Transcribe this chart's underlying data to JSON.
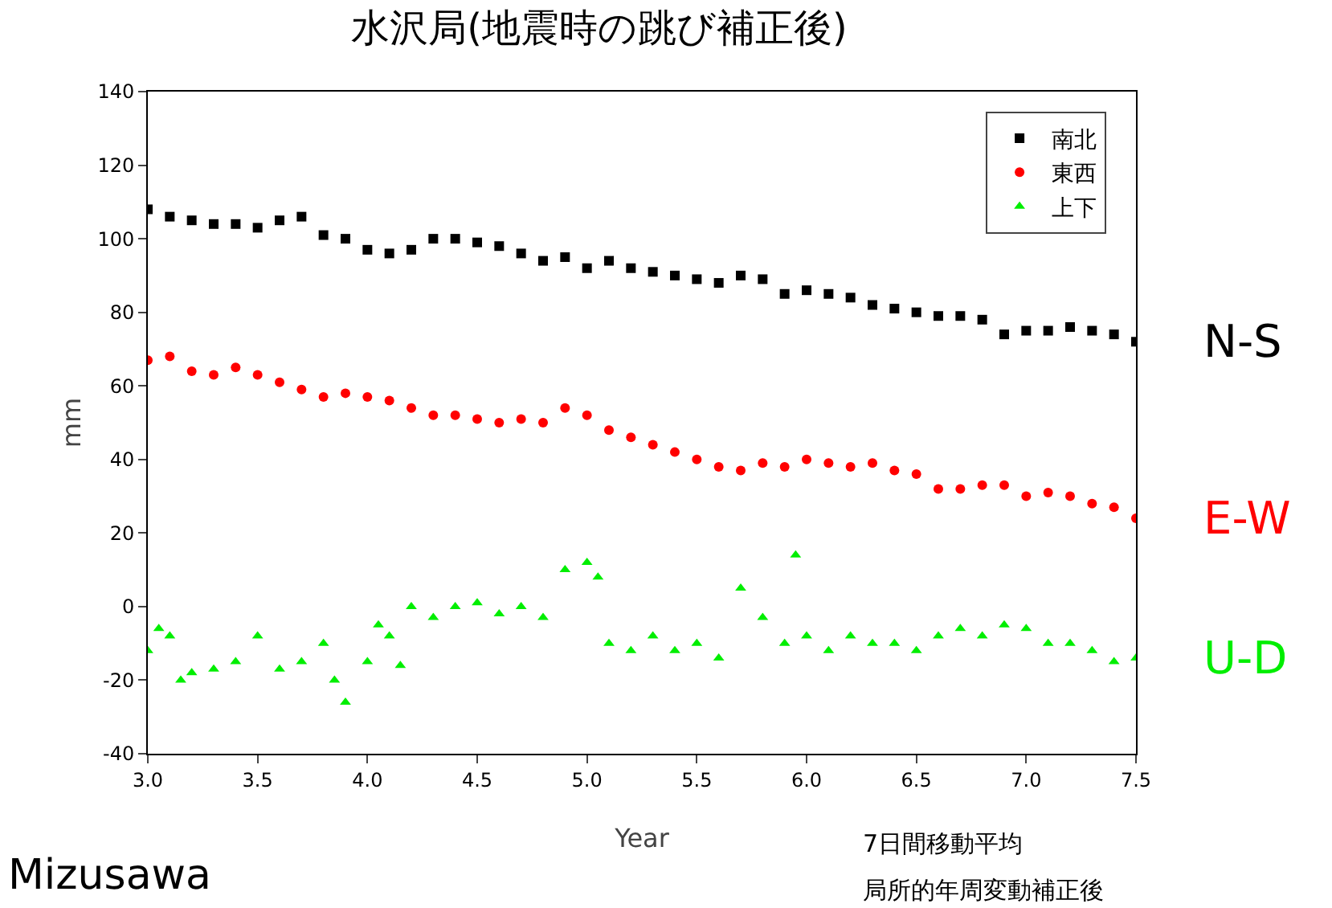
{
  "chart_data": {
    "type": "scatter",
    "title": "水沢局(地震時の跳び補正後)",
    "xlabel": "Year",
    "ylabel": "mm",
    "x": [
      3.0,
      3.1,
      3.2,
      3.3,
      3.4,
      3.5,
      3.6,
      3.7,
      3.8,
      3.9,
      4.0,
      4.1,
      4.2,
      4.3,
      4.4,
      4.5,
      4.6,
      4.7,
      4.8,
      4.9,
      5.0,
      5.1,
      5.2,
      5.3,
      5.4,
      5.5,
      5.6,
      5.7,
      5.8,
      5.9,
      6.0,
      6.1,
      6.2,
      6.3,
      6.4,
      6.5,
      6.6,
      6.7,
      6.8,
      6.9,
      7.0,
      7.1,
      7.2,
      7.3,
      7.4,
      7.5
    ],
    "series": [
      {
        "name": "南北",
        "color": "#000000",
        "marker": "square",
        "values": [
          108,
          106,
          105,
          104,
          104,
          103,
          105,
          106,
          101,
          100,
          97,
          96,
          97,
          100,
          100,
          99,
          98,
          96,
          94,
          95,
          92,
          94,
          92,
          91,
          90,
          89,
          88,
          90,
          89,
          85,
          86,
          85,
          84,
          82,
          81,
          80,
          79,
          79,
          78,
          74,
          75,
          75,
          76,
          75,
          74,
          72
        ]
      },
      {
        "name": "東西",
        "color": "#ff0000",
        "marker": "circle",
        "values": [
          67,
          68,
          64,
          63,
          65,
          63,
          61,
          59,
          57,
          58,
          57,
          56,
          54,
          52,
          52,
          51,
          50,
          51,
          50,
          54,
          52,
          48,
          46,
          44,
          42,
          40,
          38,
          37,
          39,
          38,
          40,
          39,
          38,
          39,
          37,
          36,
          32,
          32,
          33,
          33,
          30,
          31,
          30,
          28,
          27,
          24
        ]
      },
      {
        "name": "上下",
        "color": "#00ee00",
        "marker": "triangle",
        "x": [
          3.0,
          3.05,
          3.1,
          3.15,
          3.2,
          3.3,
          3.4,
          3.5,
          3.6,
          3.7,
          3.8,
          3.85,
          3.9,
          4.0,
          4.05,
          4.1,
          4.15,
          4.2,
          4.3,
          4.4,
          4.5,
          4.6,
          4.7,
          4.8,
          4.9,
          5.0,
          5.05,
          5.1,
          5.2,
          5.3,
          5.4,
          5.5,
          5.6,
          5.7,
          5.8,
          5.9,
          5.95,
          6.0,
          6.1,
          6.2,
          6.3,
          6.4,
          6.5,
          6.6,
          6.7,
          6.8,
          6.9,
          7.0,
          7.1,
          7.2,
          7.3,
          7.4,
          7.5
        ],
        "values": [
          -12,
          -6,
          -8,
          -20,
          -18,
          -17,
          -15,
          -8,
          -17,
          -15,
          -10,
          -20,
          -26,
          -15,
          -5,
          -8,
          -16,
          0,
          -3,
          0,
          1,
          -2,
          0,
          -3,
          10,
          12,
          8,
          -10,
          -12,
          -8,
          -12,
          -10,
          -14,
          5,
          -3,
          -10,
          14,
          -8,
          -12,
          -8,
          -10,
          -10,
          -12,
          -8,
          -6,
          -8,
          -5,
          -6,
          -10,
          -10,
          -12,
          -15,
          -14
        ]
      }
    ],
    "xlim": [
      3.0,
      7.5
    ],
    "xticks": [
      {
        "value": 3,
        "label": "3.0"
      },
      {
        "value": 3.5,
        "label": "3.5"
      },
      {
        "value": 4,
        "label": "4.0"
      },
      {
        "value": 4.5,
        "label": "4.5"
      },
      {
        "value": 5,
        "label": "5.0"
      },
      {
        "value": 5.5,
        "label": "5.5"
      },
      {
        "value": 6,
        "label": "6.0"
      },
      {
        "value": 6.5,
        "label": "6.5"
      },
      {
        "value": 7,
        "label": "7.0"
      },
      {
        "value": 7.5,
        "label": "7.5"
      }
    ],
    "ylim": [
      -40,
      140
    ],
    "yticks": [
      -40,
      -20,
      0,
      20,
      40,
      60,
      80,
      100,
      120,
      140
    ],
    "grid": false,
    "legend": "top right",
    "annotations": [
      "N-S",
      "E-W",
      "U-D",
      "Mizusawa",
      "7日間移動平均",
      "局所的年周変動補正後"
    ]
  }
}
